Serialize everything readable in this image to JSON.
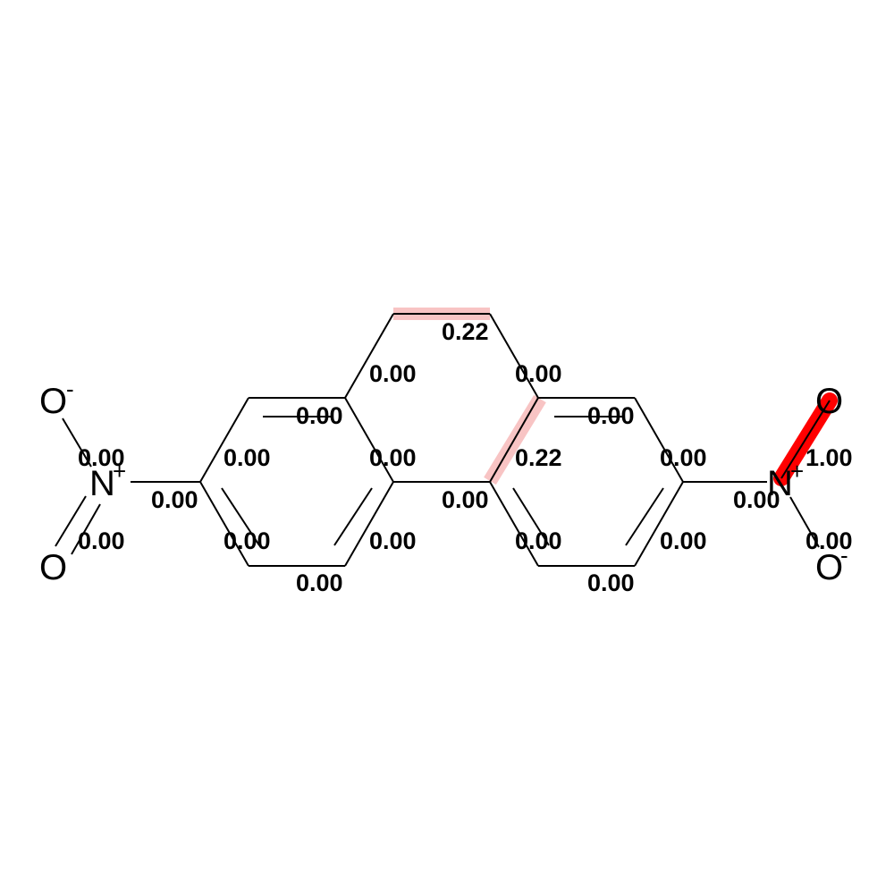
{
  "atoms": {
    "o_top_left": "O",
    "o_top_left_charge": "-",
    "n_left": "N",
    "n_left_charge": "+",
    "o_bottom_left": "O",
    "o_top_right": "O",
    "n_right": "N",
    "n_right_charge": "+",
    "o_bottom_right": "O",
    "o_bottom_right_charge": "-"
  },
  "bond_weights": {
    "w_ch2_bridge": "0.22",
    "w_bridge_left_down": "0.00",
    "w_bridge_right_down": "0.00",
    "w_left_ring_top": "0.00",
    "w_right_ring_top": "0.00",
    "w_n_left_o_top": "0.00",
    "w_left_ring_upper_left": "0.00",
    "w_left_ring_fused_right": "0.00",
    "w_right_ring_fused_double": "0.22",
    "w_right_ring_upper_right": "0.00",
    "w_n_right_o_top": "1.00",
    "w_c_n_left": "0.00",
    "w_biaryl": "0.00",
    "w_c_n_right": "0.00",
    "w_n_left_o_bottom": "0.00",
    "w_left_ring_lower_left": "0.00",
    "w_left_ring_lower_right": "0.00",
    "w_right_ring_lower_left": "0.00",
    "w_right_ring_lower_right": "0.00",
    "w_n_right_o_bottom": "0.00",
    "w_left_ring_bottom": "0.00",
    "w_right_ring_bottom": "0.00"
  },
  "highlight_colors": {
    "strong": "#ff0000",
    "light": "#f8c4c4"
  }
}
